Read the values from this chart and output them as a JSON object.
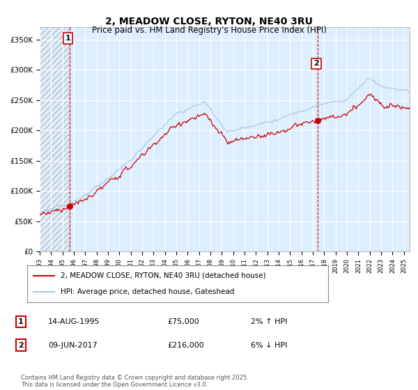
{
  "title_line1": "2, MEADOW CLOSE, RYTON, NE40 3RU",
  "title_line2": "Price paid vs. HM Land Registry's House Price Index (HPI)",
  "ylim": [
    0,
    370000
  ],
  "yticks": [
    0,
    50000,
    100000,
    150000,
    200000,
    250000,
    300000,
    350000
  ],
  "ytick_labels": [
    "£0",
    "£50K",
    "£100K",
    "£150K",
    "£200K",
    "£250K",
    "£300K",
    "£350K"
  ],
  "hpi_color": "#a8c8e8",
  "price_color": "#cc0000",
  "marker_color": "#cc0000",
  "vline_color": "#cc0000",
  "bg_plot_color": "#ddeeff",
  "background_color": "#ffffff",
  "grid_color": "#ffffff",
  "legend_label_price": "2, MEADOW CLOSE, RYTON, NE40 3RU (detached house)",
  "legend_label_hpi": "HPI: Average price, detached house, Gateshead",
  "transaction1_label": "1",
  "transaction1_date": "14-AUG-1995",
  "transaction1_price": "£75,000",
  "transaction1_hpi": "2% ↑ HPI",
  "transaction2_label": "2",
  "transaction2_date": "09-JUN-2017",
  "transaction2_price": "£216,000",
  "transaction2_hpi": "6% ↓ HPI",
  "footer": "Contains HM Land Registry data © Crown copyright and database right 2025.\nThis data is licensed under the Open Government Licence v3.0.",
  "sale1_year": 1995.62,
  "sale1_price": 75000,
  "sale2_year": 2017.44,
  "sale2_price": 216000,
  "xlim_start": 1993.0,
  "xlim_end": 2025.5
}
